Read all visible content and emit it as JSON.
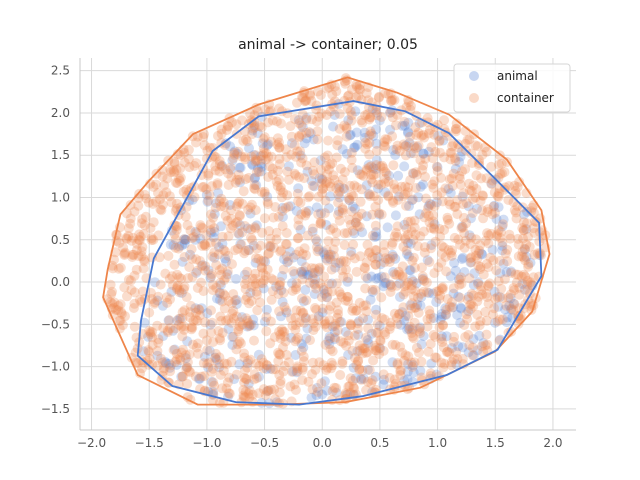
{
  "chart_data": {
    "type": "scatter",
    "title": "animal -> container; 0.05",
    "xlabel": "",
    "ylabel": "",
    "xlim": [
      -2.1,
      2.2
    ],
    "ylim": [
      -1.75,
      2.65
    ],
    "xticks": [
      -2.0,
      -1.5,
      -1.0,
      -0.5,
      0.0,
      0.5,
      1.0,
      1.5,
      2.0
    ],
    "xtick_labels": [
      "−2.0",
      "−1.5",
      "−1.0",
      "−0.5",
      "0.0",
      "0.5",
      "1.0",
      "1.5",
      "2.0"
    ],
    "yticks": [
      -1.5,
      -1.0,
      -0.5,
      0.0,
      0.5,
      1.0,
      1.5,
      2.0,
      2.5
    ],
    "ytick_labels": [
      "−1.5",
      "−1.0",
      "−0.5",
      "0.0",
      "0.5",
      "1.0",
      "1.5",
      "2.0",
      "2.5"
    ],
    "grid": true,
    "legend_position": "top-right",
    "series": [
      {
        "name": "animal",
        "color": "#4878d0",
        "hull": [
          [
            -1.6,
            -0.87
          ],
          [
            -1.57,
            -0.45
          ],
          [
            -1.46,
            0.28
          ],
          [
            -0.95,
            1.55
          ],
          [
            -0.55,
            1.96
          ],
          [
            0.27,
            2.14
          ],
          [
            0.72,
            2.02
          ],
          [
            1.1,
            1.76
          ],
          [
            1.5,
            1.22
          ],
          [
            1.88,
            0.7
          ],
          [
            1.9,
            0.07
          ],
          [
            1.52,
            -0.8
          ],
          [
            1.08,
            -1.1
          ],
          [
            0.35,
            -1.35
          ],
          [
            -0.2,
            -1.45
          ],
          [
            -0.75,
            -1.42
          ],
          [
            -1.3,
            -1.23
          ]
        ]
      },
      {
        "name": "container",
        "color": "#ee854a",
        "hull": [
          [
            -1.9,
            -0.18
          ],
          [
            -1.86,
            0.15
          ],
          [
            -1.75,
            0.8
          ],
          [
            -1.5,
            1.2
          ],
          [
            -1.12,
            1.75
          ],
          [
            -0.55,
            2.1
          ],
          [
            0.22,
            2.42
          ],
          [
            0.65,
            2.24
          ],
          [
            1.1,
            1.98
          ],
          [
            1.6,
            1.45
          ],
          [
            1.9,
            0.85
          ],
          [
            1.97,
            0.33
          ],
          [
            1.82,
            -0.35
          ],
          [
            1.5,
            -0.82
          ],
          [
            0.85,
            -1.25
          ],
          [
            0.2,
            -1.42
          ],
          [
            -0.4,
            -1.45
          ],
          [
            -1.08,
            -1.45
          ],
          [
            -1.6,
            -1.1
          ],
          [
            -1.78,
            -0.55
          ]
        ]
      }
    ]
  }
}
